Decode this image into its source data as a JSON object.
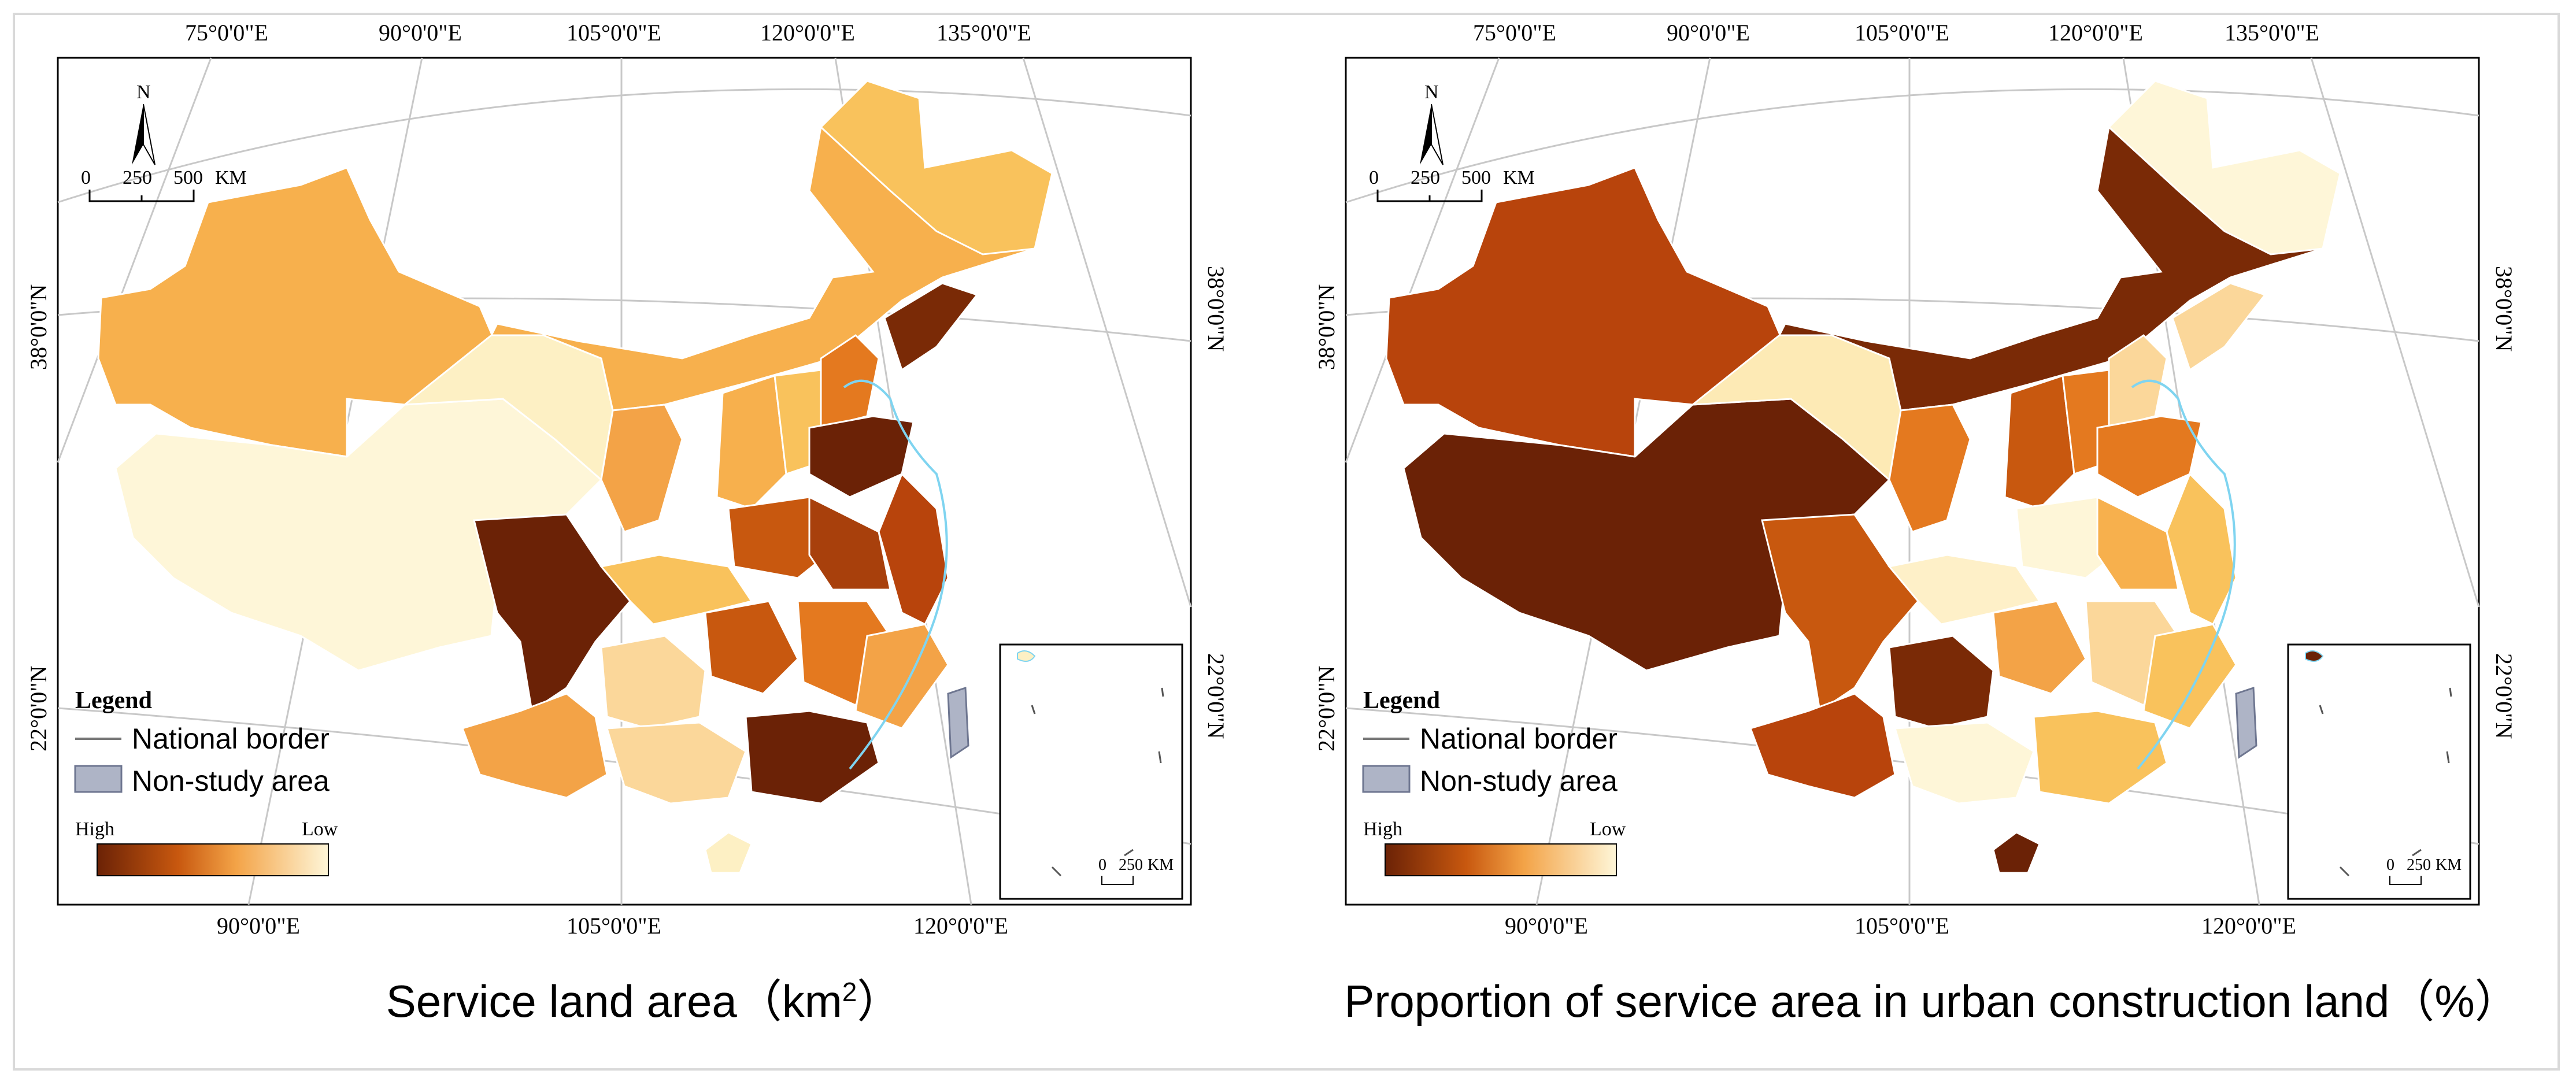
{
  "panels": [
    {
      "caption": "Service land area（km",
      "caption_sup": "2",
      "caption_tail": "）",
      "top_ticks": [
        "75°0'0\"E",
        "90°0'0\"E",
        "105°0'0\"E",
        "120°0'0\"E",
        "135°0'0\"E"
      ],
      "bottom_ticks": [
        "90°0'0\"E",
        "105°0'0\"E",
        "120°0'0\"E"
      ],
      "left_ticks": [
        "38°0'0\"N",
        "22°0'0\"N"
      ],
      "right_ticks": [
        "38°0'0\"N",
        "22°0'0\"N"
      ],
      "north": "N",
      "scale": {
        "labels": [
          "0",
          "250",
          "500"
        ],
        "unit": "KM"
      },
      "legend": {
        "title": "Legend",
        "border": "National border",
        "non_study": "Non-study area",
        "high": "High",
        "low": "Low"
      },
      "inset_scale": {
        "labels": [
          "0",
          "250"
        ],
        "unit": "KM"
      }
    },
    {
      "caption": "Proportion of service area in urban construction land（%）",
      "top_ticks": [
        "75°0'0\"E",
        "90°0'0\"E",
        "105°0'0\"E",
        "120°0'0\"E",
        "135°0'0\"E"
      ],
      "bottom_ticks": [
        "90°0'0\"E",
        "105°0'0\"E",
        "120°0'0\"E"
      ],
      "left_ticks": [
        "38°0'0\"N",
        "22°0'0\"N"
      ],
      "right_ticks": [
        "38°0'0\"N",
        "22°0'0\"N"
      ],
      "north": "N",
      "scale": {
        "labels": [
          "0",
          "250",
          "500"
        ],
        "unit": "KM"
      },
      "legend": {
        "title": "Legend",
        "border": "National border",
        "non_study": "Non-study area",
        "high": "High",
        "low": "Low"
      },
      "inset_scale": {
        "labels": [
          "0",
          "250"
        ],
        "unit": "KM"
      }
    }
  ],
  "colors": {
    "high": "#6b2206",
    "mid_high": "#b8440c",
    "mid": "#e4791f",
    "mid_low": "#f5b354",
    "low": "#fef6d8",
    "coast": "#7fd4f0",
    "non_study": "#aeb4c6"
  }
}
